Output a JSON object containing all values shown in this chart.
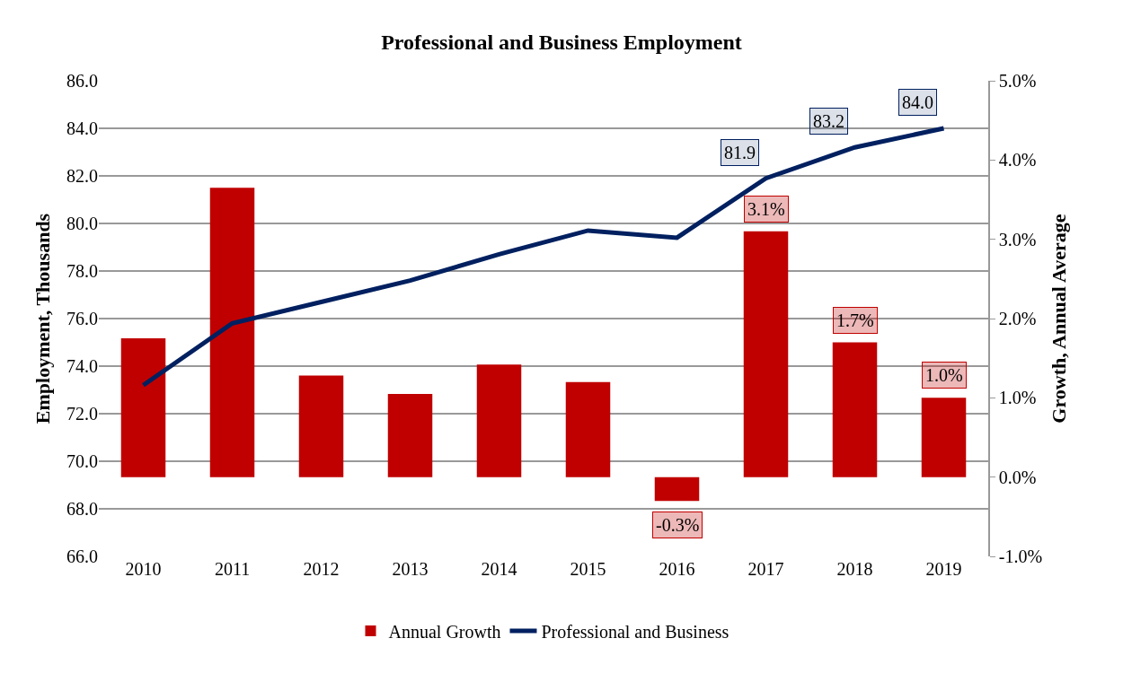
{
  "chart_data": {
    "type": "bar",
    "title": "Professional and Business Employment",
    "ylabel": "Employment, Thousands",
    "y2label": "Growth, Annual Average",
    "categories": [
      "2010",
      "2011",
      "2012",
      "2013",
      "2014",
      "2015",
      "2016",
      "2017",
      "2018",
      "2019"
    ],
    "series": [
      {
        "name": "Annual Growth",
        "axis": "y2",
        "color": "#c00000",
        "values": [
          1.75,
          3.65,
          1.28,
          1.05,
          1.42,
          1.2,
          -0.3,
          3.1,
          1.7,
          1.0
        ],
        "value_labels": [
          null,
          null,
          null,
          null,
          null,
          null,
          "-0.3%",
          "3.1%",
          "1.7%",
          "1.0%"
        ]
      },
      {
        "name": "Professional and Business",
        "type": "line",
        "color": "#002060",
        "values": [
          73.2,
          75.8,
          76.7,
          77.6,
          78.7,
          79.7,
          79.4,
          81.9,
          83.2,
          84.0
        ],
        "value_labels": [
          null,
          null,
          null,
          null,
          null,
          null,
          null,
          "81.9",
          "83.2",
          "84.0"
        ]
      }
    ],
    "ylim": [
      66,
      86
    ],
    "yticks": [
      {
        "value": 66,
        "label": "66.0"
      },
      {
        "value": 68,
        "label": "68.0"
      },
      {
        "value": 70,
        "label": "70.0"
      },
      {
        "value": 72,
        "label": "72.0"
      },
      {
        "value": 74,
        "label": "74.0"
      },
      {
        "value": 76,
        "label": "76.0"
      },
      {
        "value": 78,
        "label": "78.0"
      },
      {
        "value": 80,
        "label": "80.0"
      },
      {
        "value": 82,
        "label": "82.0"
      },
      {
        "value": 84,
        "label": "84.0"
      },
      {
        "value": 86,
        "label": "86.0"
      }
    ],
    "y2lim": [
      -1,
      5
    ],
    "y2ticks": [
      {
        "value": -1,
        "label": "-1.0%"
      },
      {
        "value": 0,
        "label": "0.0%"
      },
      {
        "value": 1,
        "label": "1.0%"
      },
      {
        "value": 2,
        "label": "2.0%"
      },
      {
        "value": 3,
        "label": "3.0%"
      },
      {
        "value": 4,
        "label": "4.0%"
      },
      {
        "value": 5,
        "label": "5.0%"
      }
    ],
    "grid": "y",
    "legend": "bottom"
  }
}
